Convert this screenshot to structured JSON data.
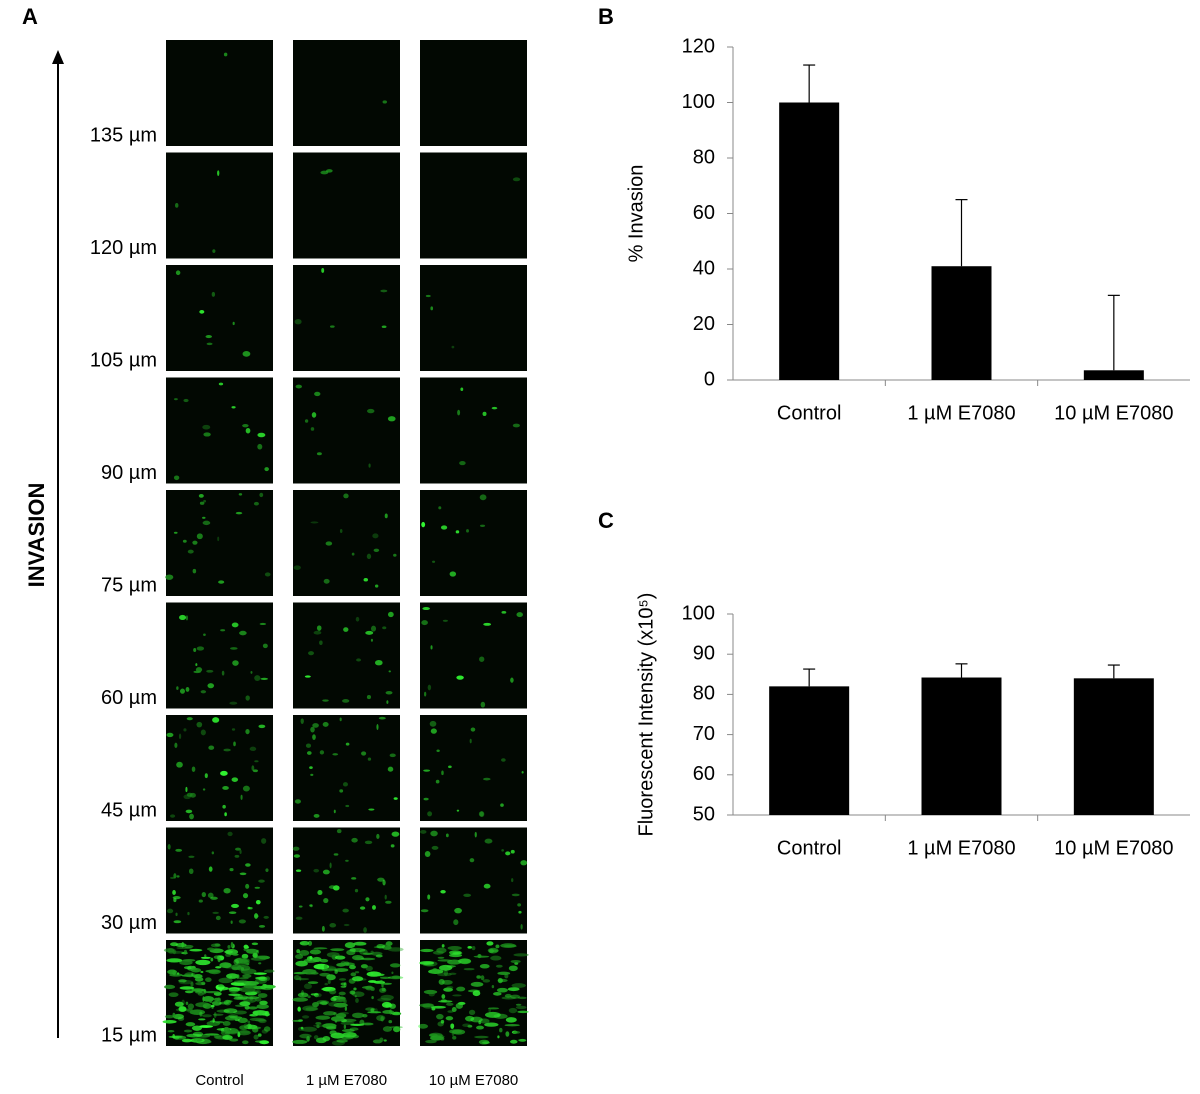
{
  "panel_labels": [
    "A",
    "B",
    "C"
  ],
  "panel_a": {
    "axis_label": "INVASION",
    "depths": [
      "135 µm",
      "120 µm",
      "105 µm",
      "90 µm",
      "75 µm",
      "60 µm",
      "45 µm",
      "30 µm",
      "15 µm"
    ],
    "conditions": [
      "Control",
      "1 µM E7080",
      "10 µM E7080"
    ]
  },
  "chart_data": [
    {
      "type": "bar",
      "ylabel": "% Invasion",
      "categories": [
        "Control",
        "1 µM E7080",
        "10 µM E7080"
      ],
      "values": [
        100,
        41,
        3.5
      ],
      "errors": [
        13.5,
        24,
        27
      ],
      "color": "#000000",
      "ylim": [
        0,
        120
      ],
      "yticks": [
        0,
        20,
        40,
        60,
        80,
        100,
        120
      ]
    },
    {
      "type": "bar",
      "ylabel": "Fluorescent Intensity (x10⁵)",
      "categories": [
        "Control",
        "1 µM E7080",
        "10 µM E7080"
      ],
      "values": [
        82,
        84.2,
        84
      ],
      "errors": [
        4.3,
        3.4,
        3.3
      ],
      "color": "#000000",
      "ylim": [
        50,
        100
      ],
      "yticks": [
        50,
        60,
        70,
        80,
        90,
        100
      ]
    }
  ]
}
